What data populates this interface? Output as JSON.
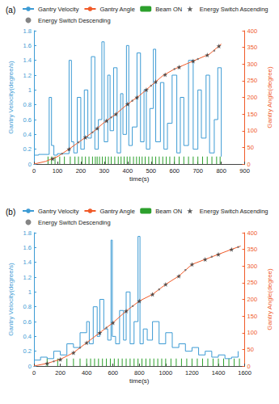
{
  "chart_data": [
    {
      "type": "line",
      "title": "(a)",
      "x_label": "time(s)",
      "y_label": "Gantry Velocity(degree/s)",
      "y2_label": "Gantry Angle(degree)",
      "xlim": [
        0,
        900
      ],
      "xticks": [
        0,
        100,
        200,
        300,
        400,
        500,
        600,
        700,
        800,
        900
      ],
      "ylim": [
        0,
        1.8
      ],
      "yticks": [
        0,
        0.2,
        0.4,
        0.6,
        0.8,
        1,
        1.2,
        1.4,
        1.6,
        1.8
      ],
      "y2lim": [
        0,
        400
      ],
      "y2ticks": [
        0,
        50,
        100,
        150,
        200,
        250,
        300,
        350,
        400
      ],
      "grid": false,
      "legend": "top",
      "series": [
        {
          "name": "Gantry Velocity",
          "type": "step",
          "color": "#3d9bd4",
          "line_style": "solid",
          "x": [
            0,
            20,
            65,
            75,
            85,
            100,
            150,
            160,
            170,
            185,
            200,
            215,
            230,
            245,
            260,
            275,
            290,
            300,
            315,
            325,
            340,
            355,
            370,
            380,
            395,
            405,
            420,
            440,
            455,
            470,
            480,
            495,
            510,
            520,
            540,
            555,
            570,
            590,
            610,
            625,
            640,
            660,
            680,
            700,
            715,
            735,
            750,
            770,
            785,
            800
          ],
          "values": [
            0.12,
            0.13,
            0.9,
            0.25,
            0.12,
            0.14,
            1.4,
            0.3,
            0.15,
            0.9,
            0.2,
            1.0,
            0.35,
            1.45,
            0.2,
            0.6,
            1.65,
            0.3,
            1.2,
            0.45,
            1.3,
            0.15,
            0.95,
            0.4,
            1.6,
            0.25,
            0.5,
            1.5,
            0.3,
            1.0,
            0.2,
            0.75,
            1.55,
            0.3,
            1.1,
            0.2,
            0.55,
            1.2,
            0.15,
            0.9,
            0.25,
            1.4,
            0.2,
            1.0,
            0.35,
            1.2,
            0.15,
            0.6,
            1.3,
            0.1
          ]
        },
        {
          "name": "Gantry Angle",
          "type": "line",
          "color": "#f05a28",
          "axis": "y2",
          "line_style": "solid",
          "x": [
            0,
            50,
            100,
            150,
            200,
            250,
            300,
            350,
            400,
            450,
            500,
            550,
            600,
            650,
            700,
            750,
            800
          ],
          "values": [
            0,
            8,
            22,
            45,
            70,
            95,
            125,
            150,
            180,
            205,
            235,
            265,
            285,
            300,
            315,
            330,
            360
          ]
        },
        {
          "name": "Beam ON",
          "type": "bar",
          "color": "#2ca02c",
          "x": [
            60,
            75,
            90,
            110,
            130,
            155,
            175,
            190,
            205,
            220,
            235,
            250,
            262,
            270,
            280,
            292,
            305,
            318,
            330,
            345,
            360,
            372,
            385,
            398,
            410,
            425,
            438,
            450,
            462,
            475,
            490,
            505,
            520,
            535,
            550,
            565,
            580,
            600,
            620,
            640,
            660,
            680,
            700,
            720,
            740,
            760,
            780,
            795
          ],
          "values": [
            0.1,
            0.1,
            0.1,
            0.1,
            0.1,
            0.1,
            0.1,
            0.1,
            0.1,
            0.1,
            0.1,
            0.1,
            0.1,
            0.1,
            0.1,
            0.1,
            0.1,
            0.1,
            0.1,
            0.1,
            0.1,
            0.1,
            0.1,
            0.1,
            0.1,
            0.1,
            0.1,
            0.1,
            0.1,
            0.1,
            0.1,
            0.1,
            0.1,
            0.1,
            0.1,
            0.1,
            0.1,
            0.1,
            0.1,
            0.1,
            0.1,
            0.1,
            0.1,
            0.1,
            0.1,
            0.1,
            0.1,
            0.1
          ]
        },
        {
          "name": "Energy Switch Ascending",
          "type": "scatter",
          "color": "#333333",
          "axis": "y2",
          "marker": "star",
          "x": [
            80,
            150,
            220,
            270,
            310,
            350,
            400,
            440,
            480,
            520,
            560,
            620,
            680,
            740,
            790
          ],
          "values": [
            16,
            45,
            80,
            107,
            130,
            150,
            180,
            200,
            223,
            247,
            268,
            291,
            309,
            327,
            354
          ]
        },
        {
          "name": "Energy Switch Descending",
          "type": "scatter",
          "color": "#666666",
          "axis": "y2",
          "marker": "dot",
          "x": [
            120,
            190,
            250,
            330,
            420,
            500,
            600,
            700,
            770
          ],
          "values": [
            31,
            65,
            95,
            140,
            190,
            235,
            285,
            315,
            340
          ]
        }
      ]
    },
    {
      "type": "line",
      "title": "(b)",
      "x_label": "time(s)",
      "y_label": "Gantry Velocity(degree/s)",
      "y2_label": "Gantry Angle(degree)",
      "xlim": [
        0,
        1600
      ],
      "xticks": [
        0,
        200,
        400,
        600,
        800,
        1000,
        1200,
        1400,
        1600
      ],
      "ylim": [
        0,
        1.8
      ],
      "yticks": [
        0,
        0.2,
        0.4,
        0.6,
        0.8,
        1,
        1.2,
        1.4,
        1.6,
        1.8
      ],
      "y2lim": [
        0,
        400
      ],
      "y2ticks": [
        0,
        50,
        100,
        150,
        200,
        250,
        300,
        350,
        400
      ],
      "grid": false,
      "legend": "top",
      "series": [
        {
          "name": "Gantry Velocity",
          "type": "step",
          "color": "#3d9bd4",
          "line_style": "solid",
          "x": [
            0,
            50,
            100,
            150,
            200,
            250,
            300,
            350,
            400,
            420,
            450,
            480,
            500,
            530,
            560,
            585,
            595,
            620,
            650,
            680,
            700,
            730,
            760,
            790,
            805,
            830,
            860,
            900,
            950,
            1000,
            1050,
            1100,
            1150,
            1200,
            1250,
            1300,
            1350,
            1400,
            1450,
            1500,
            1550
          ],
          "values": [
            0.08,
            0.12,
            0.1,
            0.2,
            0.15,
            0.3,
            0.25,
            0.45,
            0.6,
            0.3,
            0.8,
            0.4,
            0.9,
            0.5,
            0.35,
            1.7,
            0.4,
            0.3,
            0.75,
            0.35,
            1.0,
            0.3,
            0.6,
            1.75,
            0.3,
            0.5,
            0.35,
            0.6,
            0.3,
            0.45,
            0.25,
            0.3,
            0.2,
            0.25,
            0.15,
            0.2,
            0.12,
            0.15,
            0.1,
            0.12,
            0.2
          ]
        },
        {
          "name": "Gantry Angle",
          "type": "line",
          "color": "#f05a28",
          "axis": "y2",
          "line_style": "solid",
          "x": [
            0,
            100,
            200,
            300,
            400,
            500,
            600,
            700,
            800,
            900,
            1000,
            1100,
            1200,
            1300,
            1400,
            1500,
            1570
          ],
          "values": [
            0,
            8,
            20,
            40,
            70,
            100,
            130,
            165,
            195,
            215,
            245,
            270,
            305,
            320,
            335,
            350,
            360
          ]
        },
        {
          "name": "Beam ON",
          "type": "bar",
          "color": "#2ca02c",
          "x": [
            100,
            180,
            250,
            300,
            350,
            400,
            430,
            460,
            490,
            520,
            550,
            580,
            610,
            640,
            670,
            700,
            730,
            760,
            790,
            820,
            850,
            880,
            910,
            940,
            970,
            1000,
            1040,
            1080,
            1120,
            1160,
            1200,
            1240,
            1280,
            1320,
            1360,
            1400,
            1440,
            1480,
            1520,
            1560
          ],
          "values": [
            0.1,
            0.1,
            0.1,
            0.1,
            0.1,
            0.1,
            0.1,
            0.1,
            0.1,
            0.1,
            0.1,
            0.1,
            0.1,
            0.1,
            0.1,
            0.1,
            0.1,
            0.1,
            0.1,
            0.1,
            0.1,
            0.1,
            0.1,
            0.1,
            0.1,
            0.1,
            0.1,
            0.1,
            0.1,
            0.1,
            0.1,
            0.1,
            0.1,
            0.1,
            0.1,
            0.1,
            0.1,
            0.1,
            0.1,
            0.1
          ]
        },
        {
          "name": "Energy Switch Ascending",
          "type": "scatter",
          "color": "#333333",
          "axis": "y2",
          "marker": "star",
          "x": [
            100,
            200,
            300,
            400,
            500,
            600,
            700,
            800,
            900,
            1000,
            1100,
            1200,
            1300,
            1400,
            1500
          ],
          "values": [
            8,
            20,
            40,
            70,
            100,
            130,
            165,
            195,
            215,
            245,
            270,
            305,
            320,
            335,
            350
          ]
        },
        {
          "name": "Energy Switch Descending",
          "type": "scatter",
          "color": "#666666",
          "axis": "y2",
          "marker": "dot",
          "x": [
            150,
            350,
            550,
            750,
            950,
            1150,
            1350,
            1550
          ],
          "values": [
            14,
            55,
            115,
            180,
            230,
            288,
            328,
            357
          ]
        }
      ]
    }
  ]
}
